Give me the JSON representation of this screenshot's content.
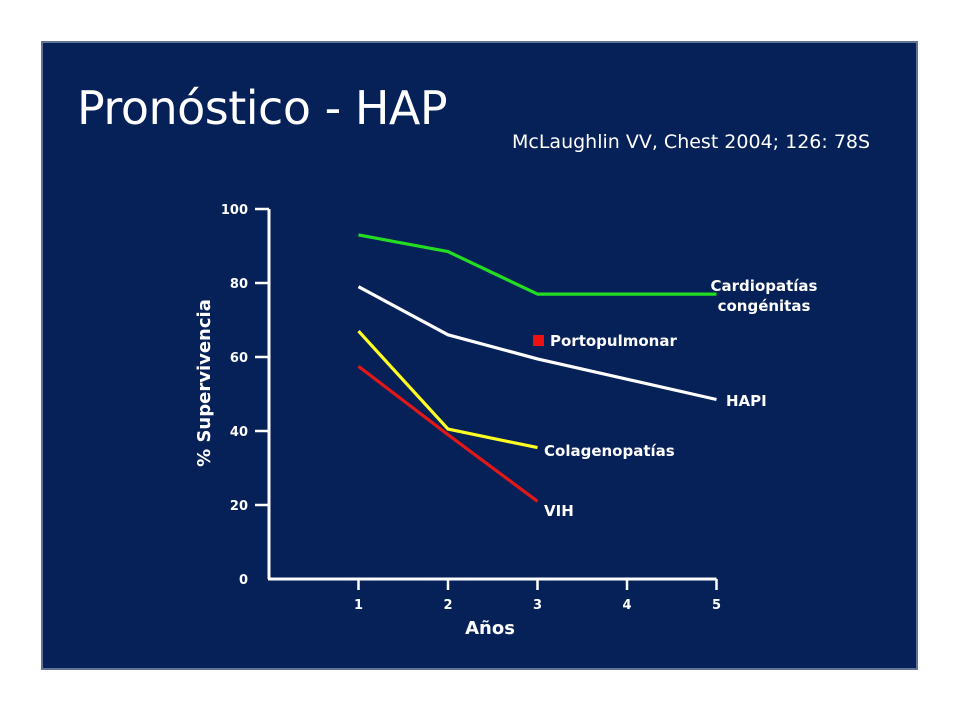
{
  "slide": {
    "title": "Pronóstico - HAP",
    "citation": "McLaughlin VV, Chest 2004; 126: 78S",
    "background_color": "#062058"
  },
  "chart_data": {
    "type": "line",
    "xlabel": "Años",
    "ylabel": "% Supervivencia",
    "x_ticks": [
      1,
      2,
      3,
      4,
      5
    ],
    "y_ticks": [
      0,
      20,
      40,
      60,
      80,
      100
    ],
    "xlim": [
      0,
      5
    ],
    "ylim": [
      0,
      100
    ],
    "grid": false,
    "series": [
      {
        "name": "Cardiopatías congénitas",
        "color": "#22dd22",
        "x": [
          1,
          2,
          3,
          4,
          5
        ],
        "y": [
          93,
          88.5,
          77,
          77,
          77
        ]
      },
      {
        "name": "HAPI",
        "color": "#ffffff",
        "x": [
          1,
          2,
          3,
          5
        ],
        "y": [
          79,
          66,
          59.5,
          48.5
        ]
      },
      {
        "name": "Portopulmonar",
        "color": "#ee1111",
        "marker_only": true,
        "x": [],
        "y": []
      },
      {
        "name": "Colagenopatías",
        "color": "#ffff22",
        "x": [
          1,
          2,
          3
        ],
        "y": [
          67,
          40.5,
          35.5
        ]
      },
      {
        "name": "VIH",
        "color": "#e01818",
        "x": [
          1,
          2,
          3
        ],
        "y": [
          57.5,
          39,
          21
        ]
      }
    ]
  }
}
